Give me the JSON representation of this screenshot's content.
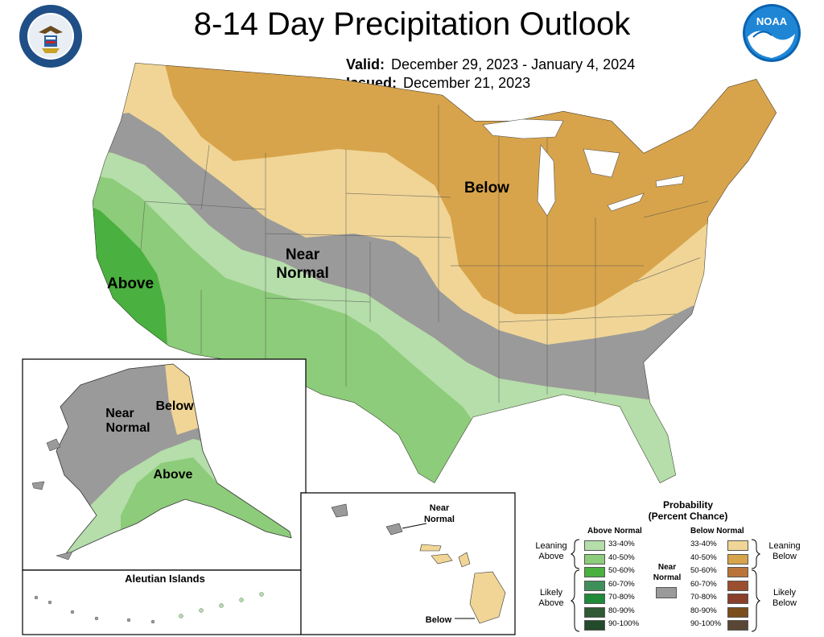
{
  "title": "8-14 Day Precipitation Outlook",
  "valid_label": "Valid:",
  "valid_dates": "December 29, 2023 - January 4, 2024",
  "issued_label": "Issued:",
  "issued_date": "December 21, 2023",
  "seals": {
    "left": "department-of-commerce-seal",
    "right": "noaa-logo"
  },
  "map_labels": {
    "below": "Below",
    "near_normal_1": "Near",
    "near_normal_2": "Normal",
    "above": "Above"
  },
  "alaska": {
    "near_1": "Near",
    "near_2": "Normal",
    "below": "Below",
    "above": "Above",
    "aleutian": "Aleutian Islands"
  },
  "hawaii": {
    "near_1": "Near",
    "near_2": "Normal",
    "below": "Below"
  },
  "legend": {
    "title_1": "Probability",
    "title_2": "(Percent Chance)",
    "above_header": "Above Normal",
    "below_header": "Below Normal",
    "near_1": "Near",
    "near_2": "Normal",
    "leaning_above_1": "Leaning",
    "leaning_above_2": "Above",
    "likely_above_1": "Likely",
    "likely_above_2": "Above",
    "leaning_below_1": "Leaning",
    "leaning_below_2": "Below",
    "likely_below_1": "Likely",
    "likely_below_2": "Below",
    "above_rows": [
      {
        "range": "33-40%",
        "color": "#b5deaa"
      },
      {
        "range": "40-50%",
        "color": "#8dcc7a"
      },
      {
        "range": "50-60%",
        "color": "#4ab03f"
      },
      {
        "range": "60-70%",
        "color": "#3f8f5a"
      },
      {
        "range": "70-80%",
        "color": "#1e8a3a"
      },
      {
        "range": "80-90%",
        "color": "#2f5a35"
      },
      {
        "range": "90-100%",
        "color": "#234a2a"
      }
    ],
    "below_rows": [
      {
        "range": "33-40%",
        "color": "#f0d596"
      },
      {
        "range": "40-50%",
        "color": "#d8a44b"
      },
      {
        "range": "50-60%",
        "color": "#b9743a"
      },
      {
        "range": "60-70%",
        "color": "#9c4f2e"
      },
      {
        "range": "70-80%",
        "color": "#8a3f2a"
      },
      {
        "range": "80-90%",
        "color": "#7a4d1a"
      },
      {
        "range": "90-100%",
        "color": "#5a4636"
      }
    ],
    "near_color": "#9a9a9a"
  },
  "colors": {
    "leaning_below": "#f0d596",
    "below_40_50": "#d8a44b",
    "near_normal": "#9a9a9a",
    "leaning_above": "#b5deaa",
    "above_40_50": "#8dcc7a",
    "above_50_60": "#4ab03f"
  }
}
